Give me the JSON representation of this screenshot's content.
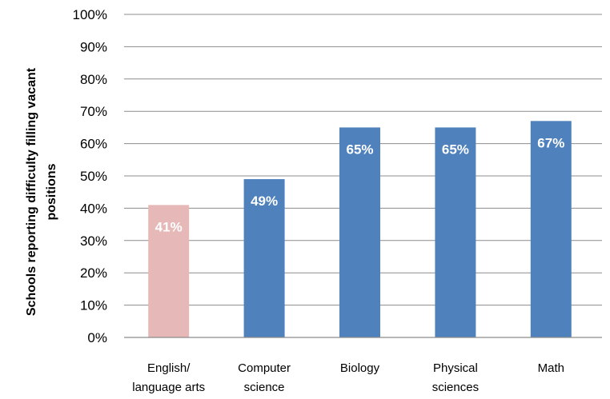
{
  "chart_data": {
    "type": "bar",
    "title": "",
    "xlabel": "",
    "ylabel_lines": [
      "Schools reporting  difficulty filling vacant",
      "positions"
    ],
    "ylim": [
      0,
      100
    ],
    "y_ticks": [
      0,
      10,
      20,
      30,
      40,
      50,
      60,
      70,
      80,
      90,
      100
    ],
    "y_tick_suffix": "%",
    "categories": [
      [
        "English/",
        "language arts"
      ],
      [
        "Computer",
        "science"
      ],
      [
        "Biology"
      ],
      [
        "Physical",
        "sciences"
      ],
      [
        "Math"
      ]
    ],
    "values": [
      41,
      49,
      65,
      65,
      67
    ],
    "data_labels": [
      "41%",
      "49%",
      "65%",
      "65%",
      "67%"
    ],
    "bar_colors": [
      "#e6b9b8",
      "#4f81bd",
      "#4f81bd",
      "#4f81bd",
      "#4f81bd"
    ],
    "grid": true,
    "legend": "none"
  },
  "colors": {
    "gridline": "#8c8c8c",
    "axis": "#8c8c8c",
    "background": "#ffffff"
  }
}
